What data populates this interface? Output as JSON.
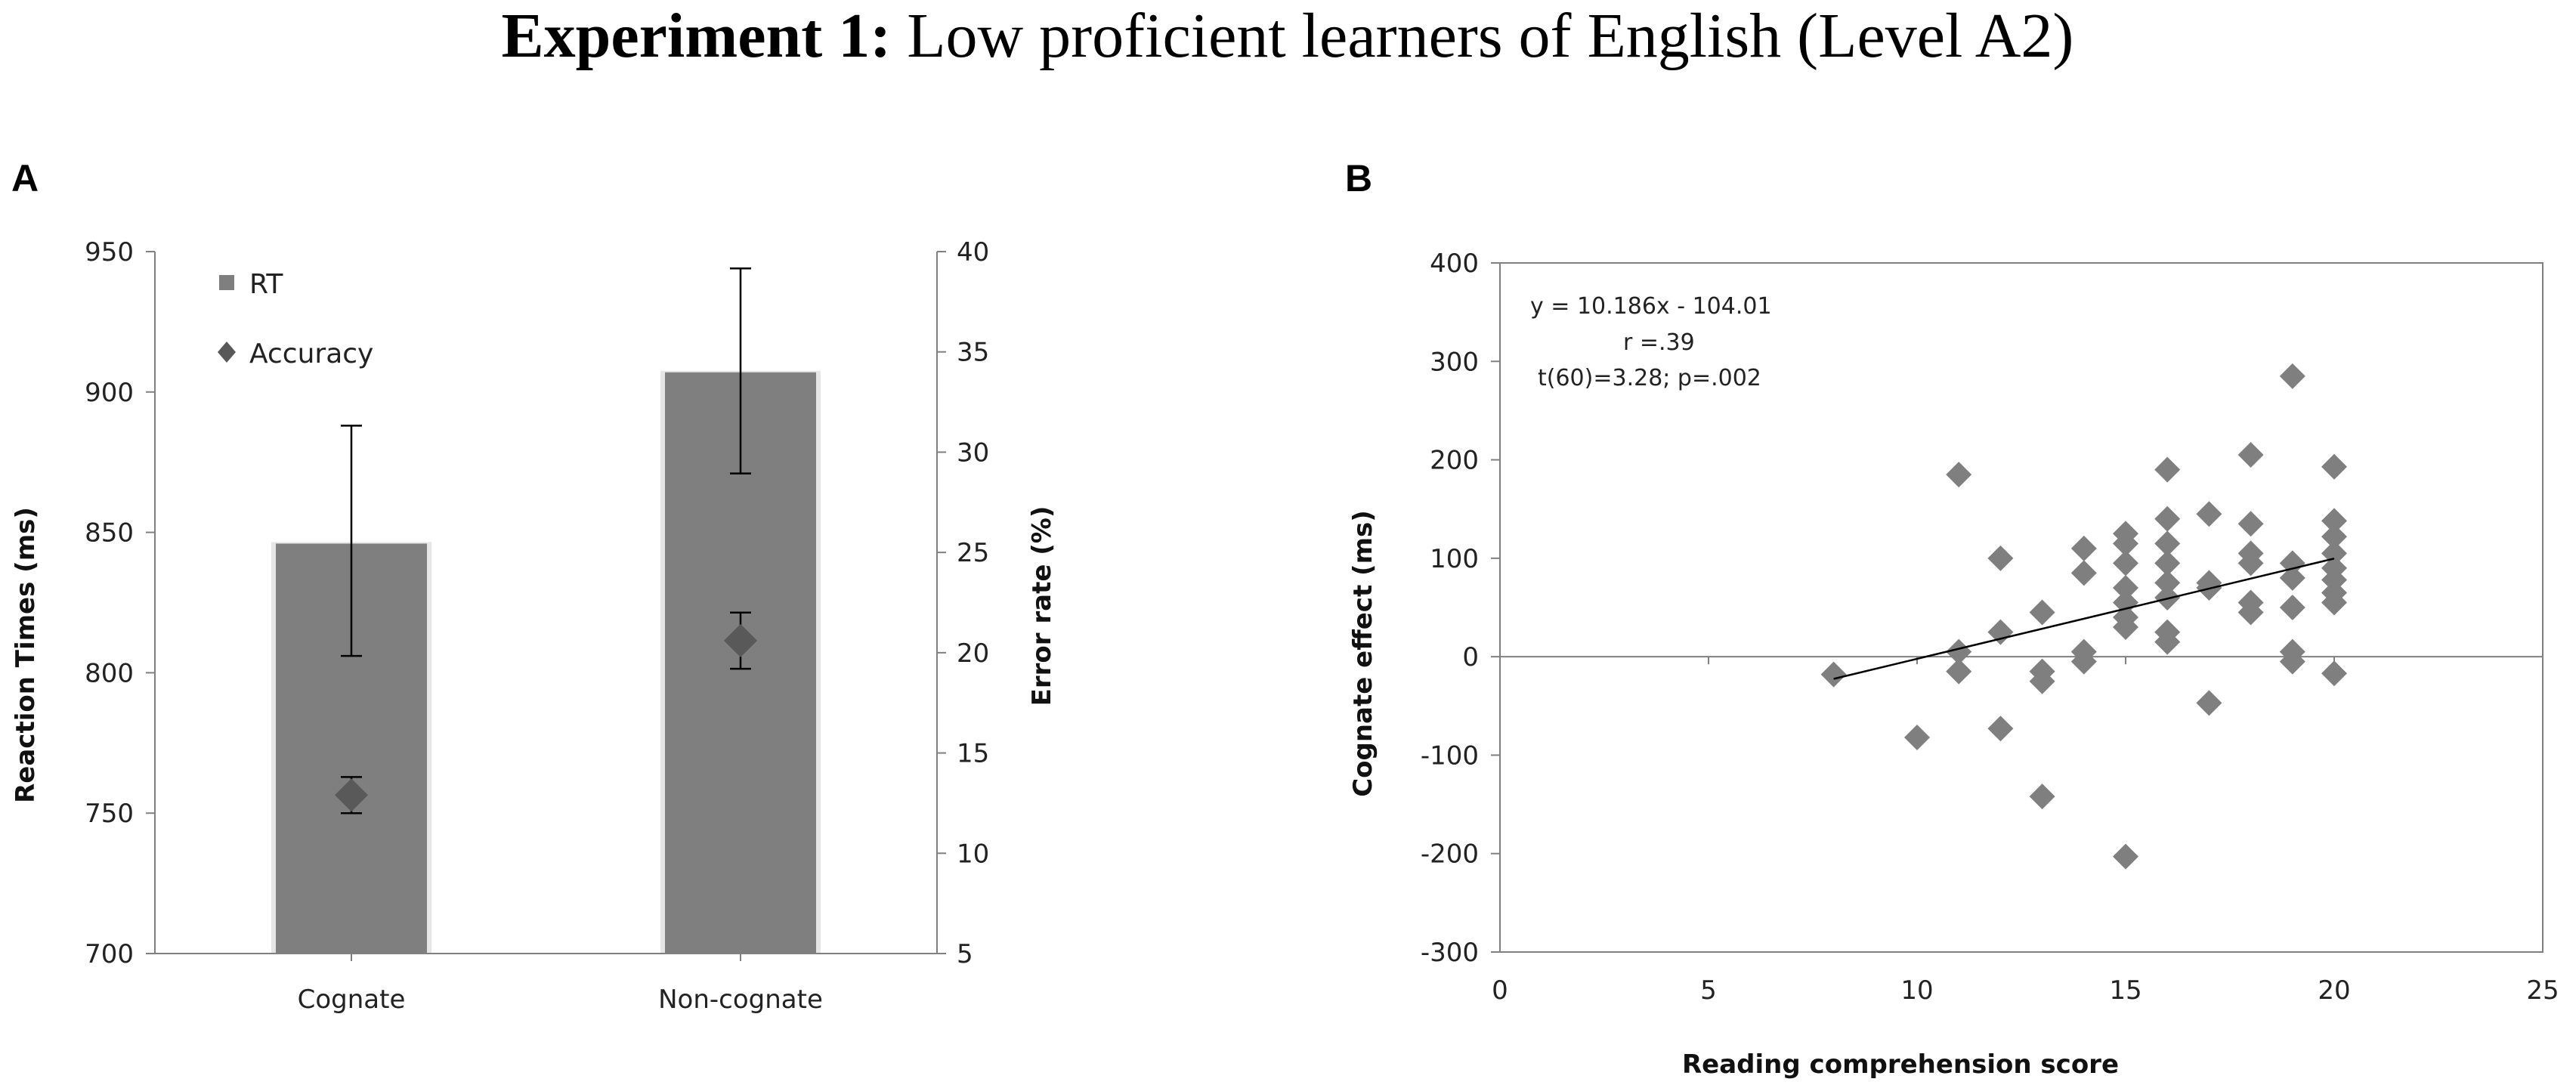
{
  "figure": {
    "title_bold": "Experiment 1:",
    "title_rest": " Low proficient learners of English (Level A2)"
  },
  "chart_data": [
    {
      "panel": "A",
      "type": "bar",
      "categories": [
        "Cognate",
        "Non-cognate"
      ],
      "series": [
        {
          "name": "RT",
          "axis": "left",
          "values": [
            846,
            907
          ],
          "error": [
            [
              806,
              888
            ],
            [
              871,
              944
            ]
          ]
        },
        {
          "name": "Accuracy",
          "axis": "right",
          "marker": "diamond",
          "values": [
            12.9,
            20.6
          ],
          "error": [
            [
              12.0,
              13.8
            ],
            [
              19.2,
              22.0
            ]
          ]
        }
      ],
      "ylabel": "Reaction Times (ms)",
      "ylim": [
        700,
        950
      ],
      "yticks": [
        "700",
        "750",
        "800",
        "850",
        "900",
        "950"
      ],
      "y2label": "Error rate (%)",
      "y2lim": [
        5,
        40
      ],
      "y2ticks": [
        "5",
        "10",
        "15",
        "20",
        "25",
        "30",
        "35",
        "40"
      ],
      "legend_placement": "top-left",
      "bar_color": "#7f7f7f",
      "marker_color": "#595959"
    },
    {
      "panel": "B",
      "type": "scatter",
      "xlabel": "Reading comprehension score",
      "ylabel": "Cognate effect (ms)",
      "xlim": [
        0,
        25
      ],
      "ylim": [
        -300,
        400
      ],
      "xticks": [
        "0",
        "5",
        "10",
        "15",
        "20",
        "25"
      ],
      "yticks": [
        "-300",
        "-200",
        "-100",
        "0",
        "100",
        "200",
        "300",
        "400"
      ],
      "annotation": [
        "y = 10.186x - 104.01",
        "r =.39",
        "t(60)=3.28; p=.002"
      ],
      "trendline": {
        "slope": 10.186,
        "intercept": -104.01,
        "x_range": [
          8,
          20
        ]
      },
      "marker_color": "#7f7f7f",
      "points": [
        [
          8,
          -18
        ],
        [
          10,
          -82
        ],
        [
          11,
          185
        ],
        [
          11,
          5
        ],
        [
          11,
          -15
        ],
        [
          12,
          100
        ],
        [
          12,
          25
        ],
        [
          12,
          -73
        ],
        [
          13,
          45
        ],
        [
          13,
          -15
        ],
        [
          13,
          -25
        ],
        [
          13,
          -142
        ],
        [
          14,
          110
        ],
        [
          14,
          85
        ],
        [
          14,
          5
        ],
        [
          14,
          -5
        ],
        [
          15,
          125
        ],
        [
          15,
          115
        ],
        [
          15,
          95
        ],
        [
          15,
          70
        ],
        [
          15,
          55
        ],
        [
          15,
          40
        ],
        [
          15,
          30
        ],
        [
          15,
          -203
        ],
        [
          16,
          190
        ],
        [
          16,
          140
        ],
        [
          16,
          115
        ],
        [
          16,
          95
        ],
        [
          16,
          75
        ],
        [
          16,
          60
        ],
        [
          16,
          25
        ],
        [
          16,
          15
        ],
        [
          17,
          145
        ],
        [
          17,
          75
        ],
        [
          17,
          70
        ],
        [
          17,
          -47
        ],
        [
          18,
          205
        ],
        [
          18,
          135
        ],
        [
          18,
          105
        ],
        [
          18,
          95
        ],
        [
          18,
          55
        ],
        [
          18,
          45
        ],
        [
          19,
          285
        ],
        [
          19,
          95
        ],
        [
          19,
          80
        ],
        [
          19,
          50
        ],
        [
          19,
          5
        ],
        [
          19,
          -5
        ],
        [
          20,
          193
        ],
        [
          20,
          138
        ],
        [
          20,
          122
        ],
        [
          20,
          105
        ],
        [
          20,
          90
        ],
        [
          20,
          78
        ],
        [
          20,
          65
        ],
        [
          20,
          55
        ],
        [
          20,
          -17
        ]
      ]
    }
  ]
}
